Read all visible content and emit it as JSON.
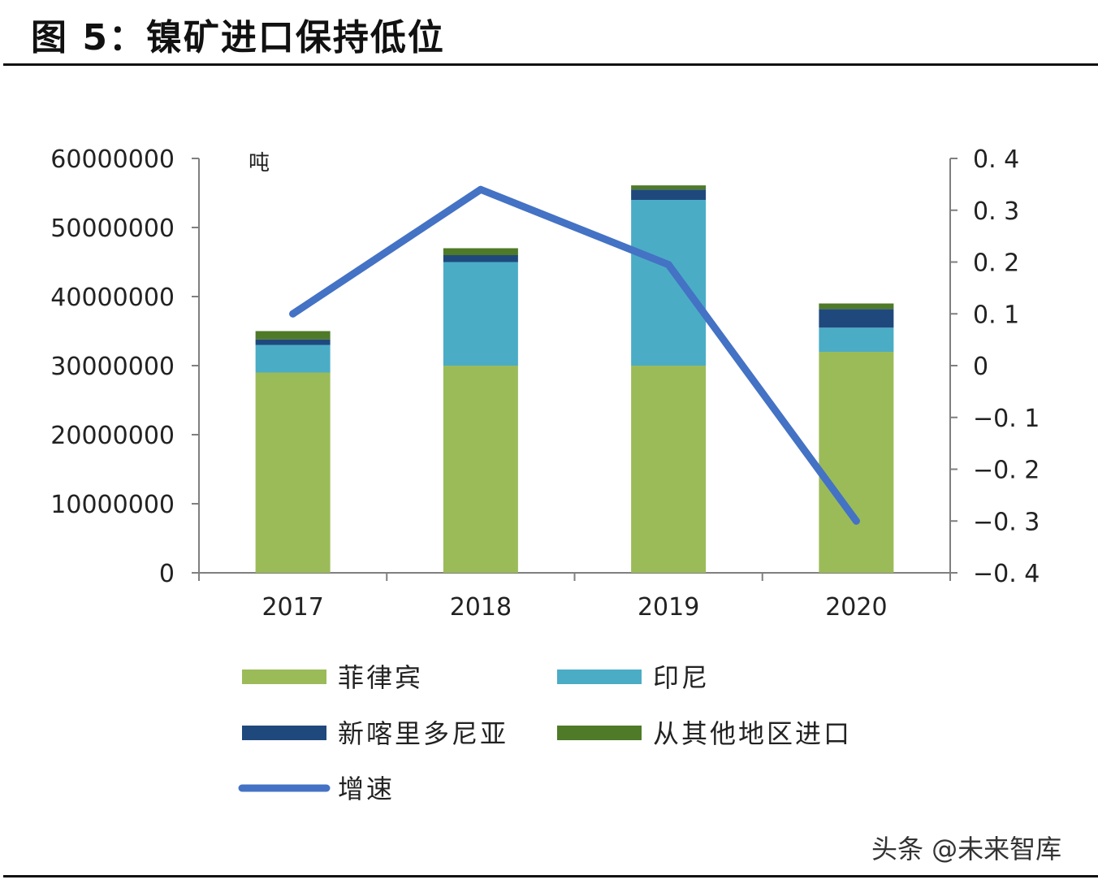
{
  "figure_title": "图 5：镍矿进口保持低位",
  "watermark": "头条 @未来智库",
  "chart_data": {
    "type": "bar",
    "stacked": true,
    "categories": [
      "2017",
      "2018",
      "2019",
      "2020"
    ],
    "left_axis": {
      "unit_label": "吨",
      "ylim": [
        0,
        60000000
      ],
      "ticks": [
        "0",
        "10000000",
        "20000000",
        "30000000",
        "40000000",
        "50000000",
        "60000000"
      ]
    },
    "right_axis": {
      "ylim": [
        -0.4,
        0.4
      ],
      "ticks": [
        "-0.4",
        "-0.3",
        "-0.2",
        "-0.1",
        "0",
        "0.1",
        "0.2",
        "0.3",
        "0.4"
      ]
    },
    "series": [
      {
        "name": "菲律宾",
        "kind": "bar",
        "axis": "left",
        "color": "#9bbb59",
        "values": [
          29000000,
          30000000,
          30000000,
          32000000
        ]
      },
      {
        "name": "印尼",
        "kind": "bar",
        "axis": "left",
        "color": "#4bacc6",
        "values": [
          4000000,
          15000000,
          24000000,
          3500000
        ]
      },
      {
        "name": "新喀里多尼亚",
        "kind": "bar",
        "axis": "left",
        "color": "#1f497d",
        "values": [
          800000,
          1000000,
          1500000,
          2700000
        ]
      },
      {
        "name": "从其他地区进口",
        "kind": "bar",
        "axis": "left",
        "color": "#4f7a28",
        "values": [
          1200000,
          1000000,
          600000,
          800000
        ]
      },
      {
        "name": "增速",
        "kind": "line",
        "axis": "right",
        "color": "#4472c4",
        "values": [
          0.1,
          0.34,
          0.195,
          -0.3
        ]
      }
    ],
    "legend_placement": "bottom",
    "grid": false
  }
}
